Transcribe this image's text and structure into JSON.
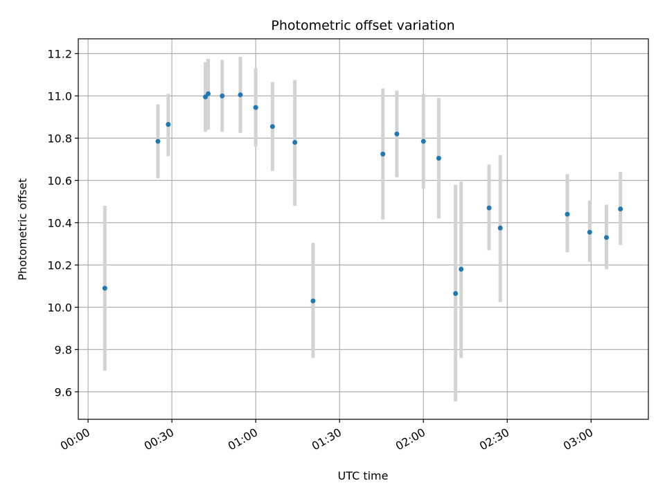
{
  "chart_data": {
    "type": "scatter",
    "title": "Photometric offset variation",
    "xlabel": "UTC time",
    "ylabel": "Photometric offset",
    "x_unit": "minutes",
    "xlim": [
      -3.5,
      200.5
    ],
    "ylim": [
      9.47,
      11.27
    ],
    "grid": true,
    "x_ticks": [
      {
        "value": 0,
        "label": "00:00"
      },
      {
        "value": 30,
        "label": "00:30"
      },
      {
        "value": 60,
        "label": "01:00"
      },
      {
        "value": 90,
        "label": "01:30"
      },
      {
        "value": 120,
        "label": "02:00"
      },
      {
        "value": 150,
        "label": "02:30"
      },
      {
        "value": 180,
        "label": "03:00"
      }
    ],
    "y_ticks": [
      {
        "value": 9.6,
        "label": "9.6"
      },
      {
        "value": 9.8,
        "label": "9.8"
      },
      {
        "value": 10.0,
        "label": "10.0"
      },
      {
        "value": 10.2,
        "label": "10.2"
      },
      {
        "value": 10.4,
        "label": "10.4"
      },
      {
        "value": 10.6,
        "label": "10.6"
      },
      {
        "value": 10.8,
        "label": "10.8"
      },
      {
        "value": 11.0,
        "label": "11.0"
      },
      {
        "value": 11.2,
        "label": "11.2"
      }
    ],
    "marker_color": "#1f77b4",
    "errorbar_color": "#d3d3d3",
    "points": [
      {
        "x": 6,
        "y": 10.09,
        "ylow": 9.7,
        "yhigh": 10.48
      },
      {
        "x": 25,
        "y": 10.785,
        "ylow": 10.61,
        "yhigh": 10.96
      },
      {
        "x": 28.7,
        "y": 10.865,
        "ylow": 10.715,
        "yhigh": 11.01
      },
      {
        "x": 42,
        "y": 10.995,
        "ylow": 10.83,
        "yhigh": 11.16
      },
      {
        "x": 43,
        "y": 11.01,
        "ylow": 10.84,
        "yhigh": 11.175
      },
      {
        "x": 48,
        "y": 11.0,
        "ylow": 10.83,
        "yhigh": 11.17
      },
      {
        "x": 54.5,
        "y": 11.005,
        "ylow": 10.825,
        "yhigh": 11.185
      },
      {
        "x": 60,
        "y": 10.945,
        "ylow": 10.76,
        "yhigh": 11.13
      },
      {
        "x": 66,
        "y": 10.855,
        "ylow": 10.645,
        "yhigh": 11.065
      },
      {
        "x": 74,
        "y": 10.78,
        "ylow": 10.48,
        "yhigh": 11.075
      },
      {
        "x": 80.5,
        "y": 10.03,
        "ylow": 9.76,
        "yhigh": 10.305
      },
      {
        "x": 105.5,
        "y": 10.725,
        "ylow": 10.415,
        "yhigh": 11.035
      },
      {
        "x": 110.5,
        "y": 10.82,
        "ylow": 10.615,
        "yhigh": 11.025
      },
      {
        "x": 120,
        "y": 10.785,
        "ylow": 10.56,
        "yhigh": 11.01
      },
      {
        "x": 125.5,
        "y": 10.705,
        "ylow": 10.42,
        "yhigh": 10.99
      },
      {
        "x": 131.5,
        "y": 10.065,
        "ylow": 9.555,
        "yhigh": 10.58
      },
      {
        "x": 133.5,
        "y": 10.18,
        "ylow": 9.76,
        "yhigh": 10.595
      },
      {
        "x": 143.5,
        "y": 10.47,
        "ylow": 10.27,
        "yhigh": 10.675
      },
      {
        "x": 147.5,
        "y": 10.375,
        "ylow": 10.025,
        "yhigh": 10.72
      },
      {
        "x": 171.5,
        "y": 10.44,
        "ylow": 10.26,
        "yhigh": 10.63
      },
      {
        "x": 179.5,
        "y": 10.355,
        "ylow": 10.215,
        "yhigh": 10.505
      },
      {
        "x": 185.5,
        "y": 10.33,
        "ylow": 10.18,
        "yhigh": 10.485
      },
      {
        "x": 190.5,
        "y": 10.465,
        "ylow": 10.295,
        "yhigh": 10.64
      }
    ]
  }
}
